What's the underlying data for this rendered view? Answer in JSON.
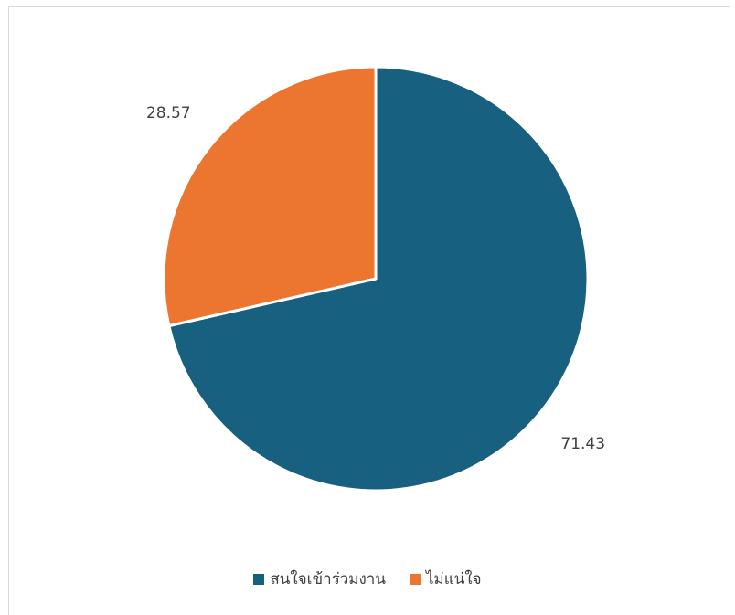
{
  "chart_data": {
    "type": "pie",
    "title": "",
    "categories": [
      "สนใจเข้าร่วมงาน",
      "ไม่แน่ใจ"
    ],
    "values": [
      71.43,
      28.57
    ],
    "data_labels": [
      "71.43",
      "28.57"
    ],
    "colors": [
      "#18607f",
      "#ec7530"
    ],
    "start_angle_deg": 0,
    "direction": "clockwise",
    "legend_position": "bottom"
  }
}
